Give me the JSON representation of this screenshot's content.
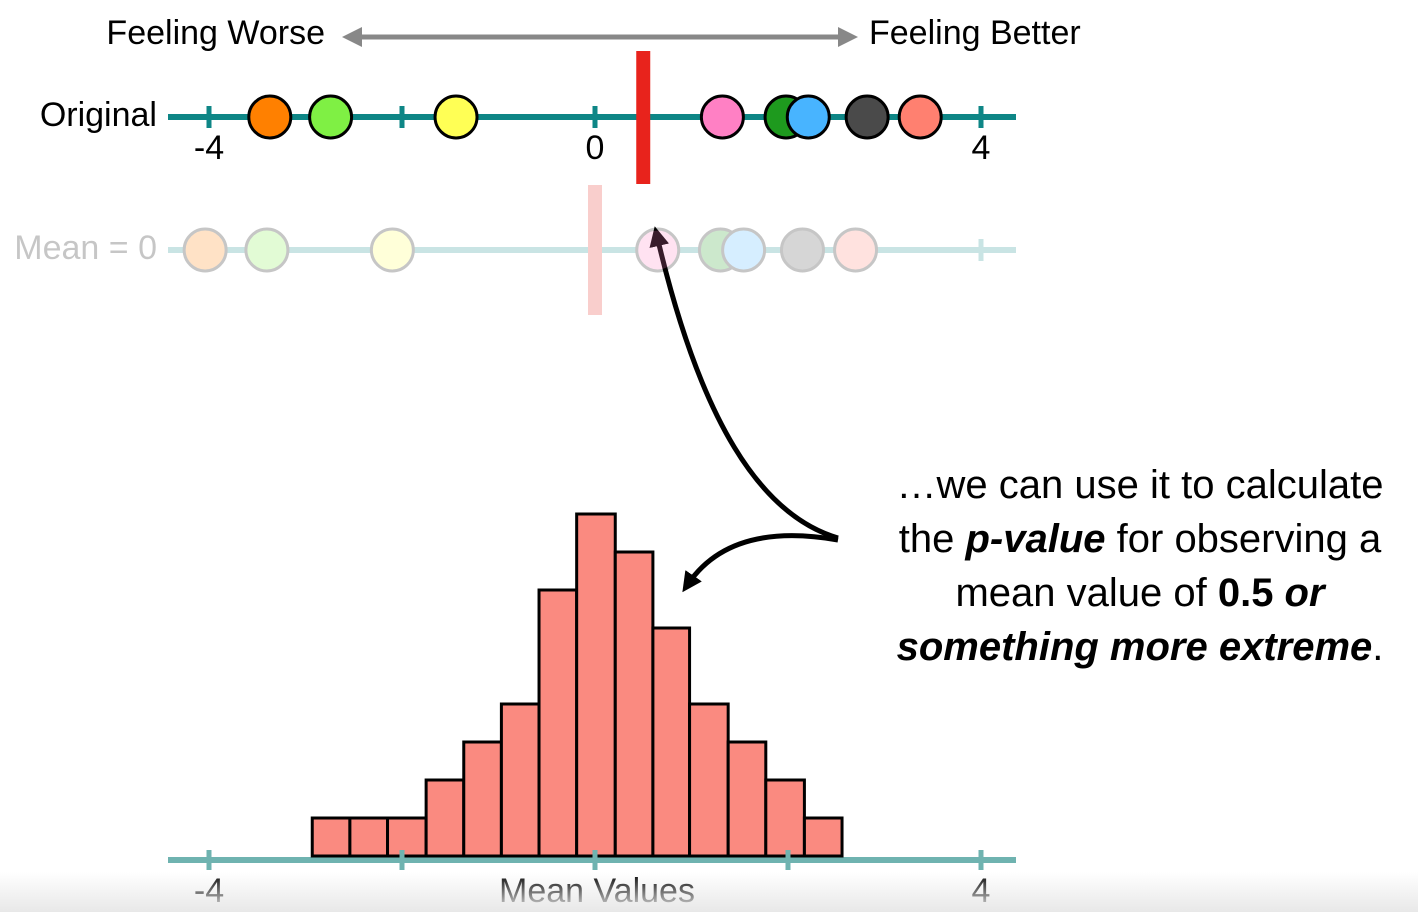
{
  "chart_data": [
    {
      "type": "strip",
      "name": "Original",
      "direction_labels": [
        "Feeling Worse",
        "Feeling Better"
      ],
      "values": [
        -3.37,
        -2.74,
        -1.44,
        1.32,
        1.98,
        2.21,
        2.82,
        3.37
      ],
      "colors": [
        "#ff8000",
        "#7ff044",
        "#ffff55",
        "#ff80c4",
        "#1e9a1e",
        "#48b4ff",
        "#4a4a4a",
        "#ff8070"
      ],
      "marker": 0.5,
      "marker_color": "#e8231c",
      "xlim": [
        -4,
        4
      ],
      "xticks": [
        -4,
        0,
        4
      ],
      "minor_ticks": [
        -2,
        2
      ],
      "axis_color": "#0e8686",
      "opacity": 1
    },
    {
      "type": "strip",
      "name": "Mean = 0",
      "values": [
        -4.04,
        -3.4,
        -2.1,
        0.65,
        1.3,
        1.54,
        2.15,
        2.7
      ],
      "colors": [
        "#ff8000",
        "#7ff044",
        "#ffff55",
        "#ff80c4",
        "#1e9a1e",
        "#48b4ff",
        "#4a4a4a",
        "#ff8070"
      ],
      "marker": 0,
      "marker_color": "#e8231c",
      "xlim": [
        -4,
        4
      ],
      "minor_ticks": [
        0,
        4
      ],
      "axis_color": "#0e8686",
      "opacity": 0.22
    },
    {
      "type": "histogram",
      "xlabel": "Mean Values",
      "bins": [
        -2.93,
        -2.54,
        -2.15,
        -1.75,
        -1.36,
        -0.97,
        -0.58,
        -0.19,
        0.21,
        0.6,
        0.98,
        1.38,
        1.77,
        2.17,
        2.56
      ],
      "counts": [
        1,
        1,
        1,
        2,
        3,
        4,
        7,
        9,
        8,
        6,
        4,
        3,
        2,
        1
      ],
      "color": "#fa8a80",
      "xlim": [
        -4,
        4
      ],
      "xticks": [
        -4,
        4
      ],
      "minor_ticks": [
        -2,
        0,
        2
      ],
      "ylim": [
        0,
        10
      ],
      "axis_color": "#6fb3b0"
    }
  ],
  "annotation": {
    "lines": [
      [
        {
          "text": "…we can use it to calculate",
          "style": "normal"
        }
      ],
      [
        {
          "text": "the ",
          "style": "normal"
        },
        {
          "text": "p-value",
          "style": "bold-italic"
        },
        {
          "text": " for observing a",
          "style": "normal"
        }
      ],
      [
        {
          "text": "mean value of ",
          "style": "normal"
        },
        {
          "text": "0.5 ",
          "style": "bold"
        },
        {
          "text": "or",
          "style": "bold-italic"
        }
      ],
      [
        {
          "text": "something more extreme",
          "style": "bold-italic"
        },
        {
          "text": ".",
          "style": "normal"
        }
      ]
    ]
  }
}
